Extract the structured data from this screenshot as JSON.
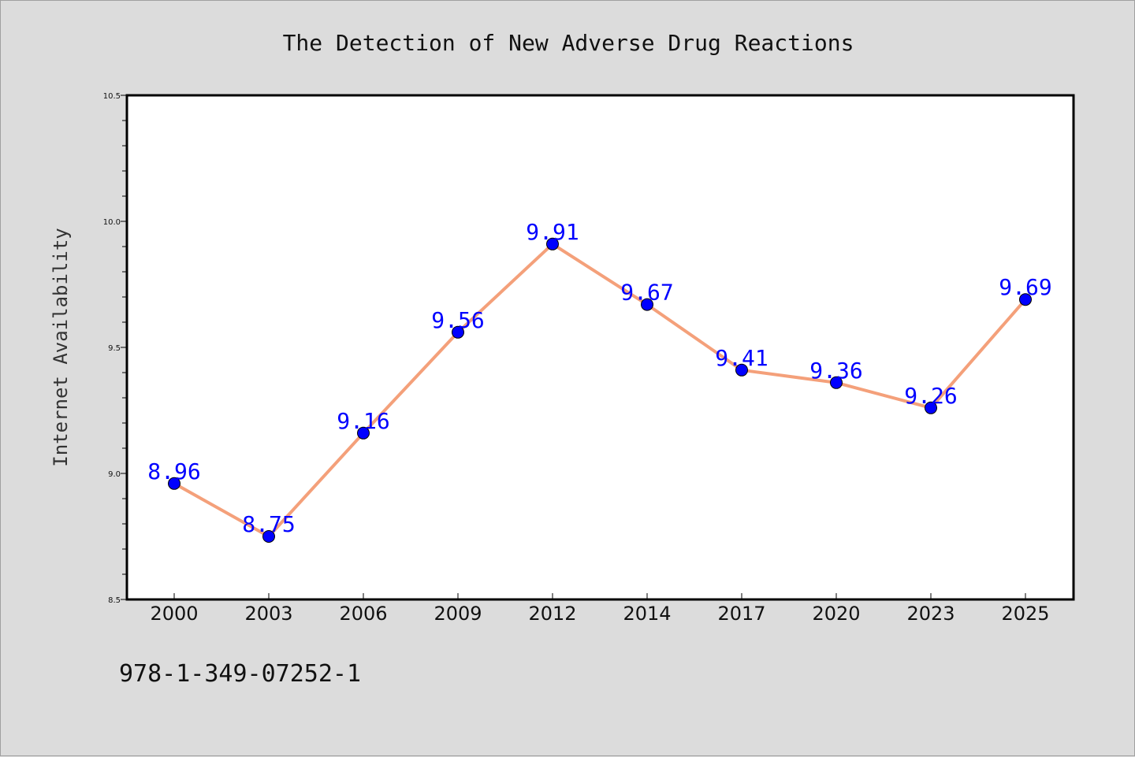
{
  "colors": {
    "background": "#dcdcdc",
    "plot_background": "#ffffff",
    "line": "#f4a07a",
    "marker": "#0000ff",
    "data_label": "#0000ff"
  },
  "footnote": "978-1-349-07252-1",
  "chart_data": {
    "type": "line",
    "title": "The Detection of New Adverse Drug Reactions",
    "xlabel": "",
    "ylabel": "Internet Availability",
    "categories": [
      "2000",
      "2003",
      "2006",
      "2009",
      "2012",
      "2014",
      "2017",
      "2020",
      "2023",
      "2025"
    ],
    "series": [
      {
        "values": [
          8.96,
          8.75,
          9.16,
          9.56,
          9.91,
          9.67,
          9.41,
          9.36,
          9.26,
          9.69
        ],
        "labels": [
          "8.96",
          "8.75",
          "9.16",
          "9.56",
          "9.91",
          "9.67",
          "9.41",
          "9.36",
          "9.26",
          "9.69"
        ]
      }
    ],
    "ylim": [
      8.5,
      10.5
    ],
    "yticks": [
      "8.5",
      "9.0",
      "9.5",
      "10.0",
      "10.5"
    ],
    "grid": false,
    "legend": "none"
  }
}
